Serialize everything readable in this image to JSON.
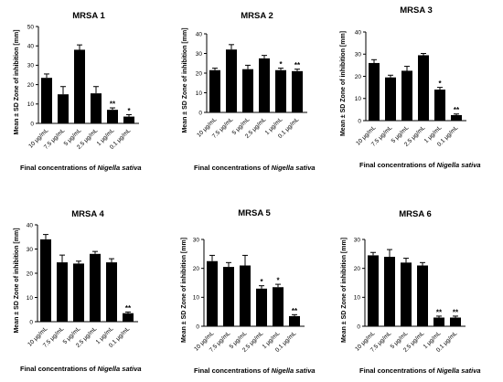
{
  "shared": {
    "ylabel": "Mean ± SD Zone of inhibition [mm]",
    "xlabel_prefix": "Final concentrations of ",
    "xlabel_species": "Nigella sativa",
    "bar_color": "#000000"
  },
  "chart_data": [
    {
      "type": "bar",
      "title": "MRSA 1",
      "categories": [
        "10 μg/mL",
        "7.5 μg/mL",
        "5 μg/mL",
        "2.5 μg/mL",
        "1 μg/mL",
        "0.1 μg/mL"
      ],
      "values": [
        23.5,
        15,
        38,
        15.5,
        7,
        3.5
      ],
      "errors": [
        2,
        4,
        2.5,
        3.5,
        1,
        1
      ],
      "significance": [
        "",
        "",
        "",
        "",
        "**",
        "*"
      ],
      "yticks": [
        0,
        10,
        20,
        30,
        40,
        50
      ],
      "ylim": [
        0,
        50
      ],
      "ylabel": "Mean ± SD Zone of inhibition [mm]",
      "xlabel": "Final concentrations of Nigella sativa"
    },
    {
      "type": "bar",
      "title": "MRSA 2",
      "categories": [
        "10 μg/mL",
        "7.5 μg/mL",
        "5 μg/mL",
        "2.5 μg/mL",
        "1 μg/mL",
        "0.1 μg/mL"
      ],
      "values": [
        21.5,
        32,
        22,
        27.5,
        21.5,
        21
      ],
      "errors": [
        1,
        2.5,
        2,
        1.5,
        1,
        1
      ],
      "significance": [
        "",
        "",
        "",
        "",
        "*",
        "**"
      ],
      "yticks": [
        0,
        10,
        20,
        30,
        40
      ],
      "ylim": [
        0,
        40
      ],
      "ylabel": "Mean ± SD Zone of inhibition [mm]",
      "xlabel": "Final concentrations of Nigella sativa"
    },
    {
      "type": "bar",
      "title": "MRSA 3",
      "categories": [
        "10 μg/mL",
        "7.5 μg/mL",
        "5 μg/mL",
        "2.5 μg/mL",
        "1 μg/mL",
        "0.1 μg/mL"
      ],
      "values": [
        26,
        19.5,
        22.5,
        29.5,
        14,
        2.5
      ],
      "errors": [
        1.5,
        1,
        2,
        0.8,
        1,
        0.5
      ],
      "significance": [
        "",
        "",
        "",
        "",
        "*",
        "**"
      ],
      "yticks": [
        0,
        10,
        20,
        30,
        40
      ],
      "ylim": [
        0,
        40
      ],
      "ylabel": "Mean ± SD Zone of inhibition [mm]",
      "xlabel": "Final concentrations of Nigella sativa"
    },
    {
      "type": "bar",
      "title": "MRSA 4",
      "categories": [
        "10 μg/mL",
        "7.5 μg/mL",
        "5 μg/mL",
        "2.5 μg/mL",
        "1 μg/mL",
        "0.1 μg/mL"
      ],
      "values": [
        34,
        24.5,
        24,
        28,
        24.5,
        3.5
      ],
      "errors": [
        2,
        3,
        1,
        1,
        1.5,
        0.5
      ],
      "significance": [
        "",
        "",
        "",
        "",
        "",
        "**"
      ],
      "yticks": [
        0,
        10,
        20,
        30,
        40
      ],
      "ylim": [
        0,
        40
      ],
      "ylabel": "Mean ± SD Zone of inhibition [mm]",
      "xlabel": "Final concentrations of Nigella sativa"
    },
    {
      "type": "bar",
      "title": "MRSA 5",
      "categories": [
        "10 μg/mL",
        "7.5 μg/mL",
        "5 μg/mL",
        "2.5 μg/mL",
        "1 μg/mL",
        "0.1 μg/mL"
      ],
      "values": [
        22.5,
        20.5,
        21,
        13,
        13.5,
        3.5
      ],
      "errors": [
        2,
        1.5,
        3.5,
        1,
        1,
        0.5
      ],
      "significance": [
        "",
        "",
        "",
        "*",
        "*",
        "**"
      ],
      "yticks": [
        0,
        10,
        20,
        30
      ],
      "ylim": [
        0,
        30
      ],
      "ylabel": "Mean ± SD Zone of inhibition [mm]",
      "xlabel": "Final concentrations of Nigella sativa"
    },
    {
      "type": "bar",
      "title": "MRSA 6",
      "categories": [
        "10 μg/mL",
        "7.5 μg/mL",
        "5 μg/mL",
        "2.5 μg/mL",
        "1 μg/mL",
        "0.1 μg/mL"
      ],
      "values": [
        24.5,
        24,
        22,
        21,
        3,
        3
      ],
      "errors": [
        1,
        2.5,
        1.5,
        1,
        0.5,
        0.5
      ],
      "significance": [
        "",
        "",
        "",
        "",
        "**",
        "**"
      ],
      "yticks": [
        0,
        10,
        20,
        30
      ],
      "ylim": [
        0,
        30
      ],
      "ylabel": "Mean ± SD Zone of inhibition [mm]",
      "xlabel": "Final concentrations of Nigella sativa"
    }
  ]
}
